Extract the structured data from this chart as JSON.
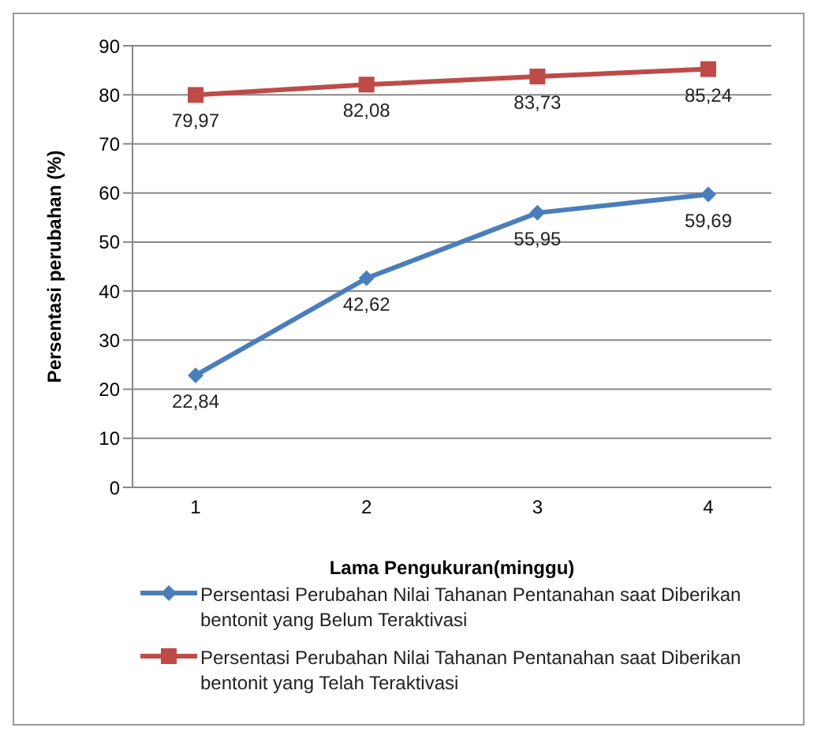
{
  "chart_data": {
    "type": "line",
    "xlabel": "Lama Pengukuran(minggu)",
    "ylabel": "Persentasi perubahan (%)",
    "categories": [
      "1",
      "2",
      "3",
      "4"
    ],
    "series": [
      {
        "name": "Persentasi Perubahan Nilai Tahanan  Pentanahan saat Diberikan bentonit yang Belum Teraktivasi",
        "color": "#4a7ebb",
        "marker": "diamond",
        "values": [
          22.84,
          42.62,
          55.95,
          59.69
        ],
        "value_labels": [
          "22,84",
          "42,62",
          "55,95",
          "59,69"
        ]
      },
      {
        "name": "Persentasi Perubahan Nilai Tahanan  Pentanahan saat Diberikan bentonit yang Telah Teraktivasi",
        "color": "#be4b48",
        "marker": "square",
        "values": [
          79.97,
          82.08,
          83.73,
          85.24
        ],
        "value_labels": [
          "79,97",
          "82,08",
          "83,73",
          "85,24"
        ]
      }
    ],
    "ylim": [
      0,
      90
    ],
    "yticks": [
      0,
      10,
      20,
      30,
      40,
      50,
      60,
      70,
      80,
      90
    ],
    "grid": "y",
    "legend": "bottom"
  }
}
